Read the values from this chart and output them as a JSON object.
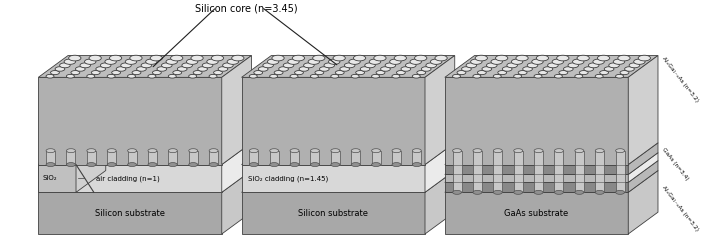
{
  "bg_color": "#ffffff",
  "title": "Silicon core (n=3.45)",
  "labels": {
    "s1_substrate": "Silicon substrate",
    "s1_sio2": "SiO₂",
    "s1_air": "air cladding (n=1)",
    "s2_substrate": "Silicon substrate",
    "s2_cladding": "SiO₂ cladding (n=1.45)",
    "s3_substrate": "GaAs substrate",
    "s3_r1": "AlₓGa₁₋ₓAs (n=3.2)",
    "s3_r2": "GaAs (n=3.4)",
    "s3_r3": "AlₓGa₁₋ₓAs (n=3.2)"
  },
  "colors": {
    "top_core": "#bebebe",
    "front_core": "#b0b0b0",
    "side_core": "#d0d0d0",
    "top_substrate": "#b8b8b8",
    "front_substrate": "#a8a8a8",
    "side_substrate": "#c8c8c8",
    "top_cladding": "#e0e0e0",
    "front_cladding": "#d8d8d8",
    "side_cladding": "#ebebeb",
    "top_sio2": "#d0d0d0",
    "front_sio2": "#c0c0c0",
    "dark_layer_front": "#888888",
    "dark_layer_top": "#aaaaaa",
    "dark_layer_side": "#b8b8b8",
    "gaas_layer_front": "#b8b8b8",
    "gaas_layer_top": "#c8c8c8",
    "hole_fill": "#e8e8e8",
    "hole_outline": "#404040",
    "pillar_fill": "#c8c8c8",
    "pillar_outline": "#505050",
    "pillar_dark": "#909090",
    "outline": "#404040",
    "arrow_color": "#202020",
    "text_color": "#000000",
    "white": "#ffffff"
  }
}
